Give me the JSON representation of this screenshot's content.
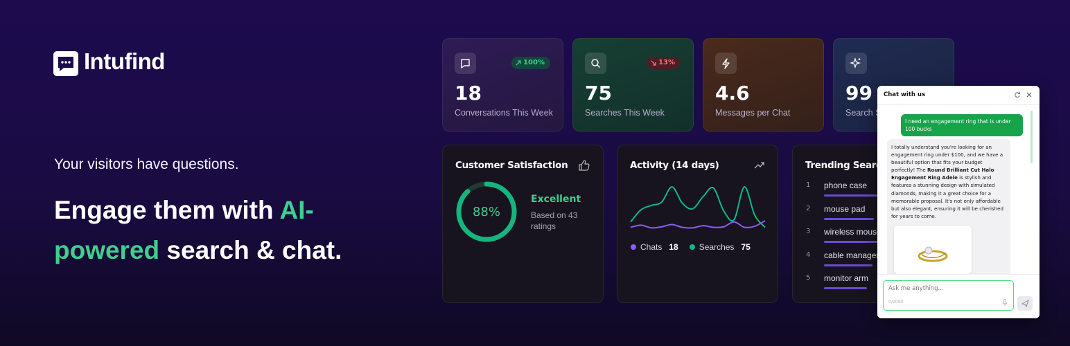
{
  "brand": {
    "name": "Intufind"
  },
  "hero": {
    "tagline": "Your visitors have questions.",
    "headline": {
      "before": "Engage them with ",
      "highlight": "AI-powered",
      "after": " search & chat."
    }
  },
  "stats": [
    {
      "value": "18",
      "label": "Conversations This Week",
      "badge": "100%",
      "trend": "up"
    },
    {
      "value": "75",
      "label": "Searches This Week",
      "badge": "13%",
      "trend": "down"
    },
    {
      "value": "4.6",
      "label": "Messages per Chat"
    },
    {
      "value": "99",
      "label": "Search S"
    }
  ],
  "satisfaction": {
    "title": "Customer Satisfaction",
    "percent": "88%",
    "rating": "Excellent",
    "note": "Based on 43 ratings"
  },
  "activity": {
    "title": "Activity (14 days)",
    "series": [
      {
        "name": "Chats",
        "total": "18",
        "color": "#8b5cf6",
        "values": [
          1.2,
          1.6,
          1.1,
          1.3,
          1.7,
          1.2,
          1.1,
          1.5,
          1.2,
          1.3,
          2.2,
          1.2,
          1.4,
          2.4
        ]
      },
      {
        "name": "Searches",
        "total": "75",
        "color": "#10b981",
        "values": [
          2.2,
          4.4,
          5.2,
          5.8,
          8.6,
          5.6,
          4.6,
          6.8,
          8.4,
          4.2,
          2.6,
          8.6,
          3.4,
          1.2
        ]
      }
    ]
  },
  "trending": {
    "title": "Trending Searches",
    "items": [
      {
        "rank": "1",
        "label": "phone case"
      },
      {
        "rank": "2",
        "label": "mouse pad"
      },
      {
        "rank": "3",
        "label": "wireless mouse"
      },
      {
        "rank": "4",
        "label": "cable manager"
      },
      {
        "rank": "5",
        "label": "monitor arm"
      }
    ]
  },
  "chat": {
    "title": "Chat with us",
    "user_message": "I need an engagement ring that is under 100 bucks",
    "bot_message": {
      "before": "I totally understand you're looking for an engagement ring under $100, and we have a beautiful option that fits your budget perfectly! The ",
      "bold": "Round Brilliant Cut Halo Engagement Ring Adele",
      "after": " is stylish and features a stunning design with simulated diamonds, making it a great choice for a memorable proposal. It's not only affordable but also elegant, ensuring it will be cherished for years to come."
    },
    "input_placeholder": "Ask me anything...",
    "counter": "0/2000"
  }
}
